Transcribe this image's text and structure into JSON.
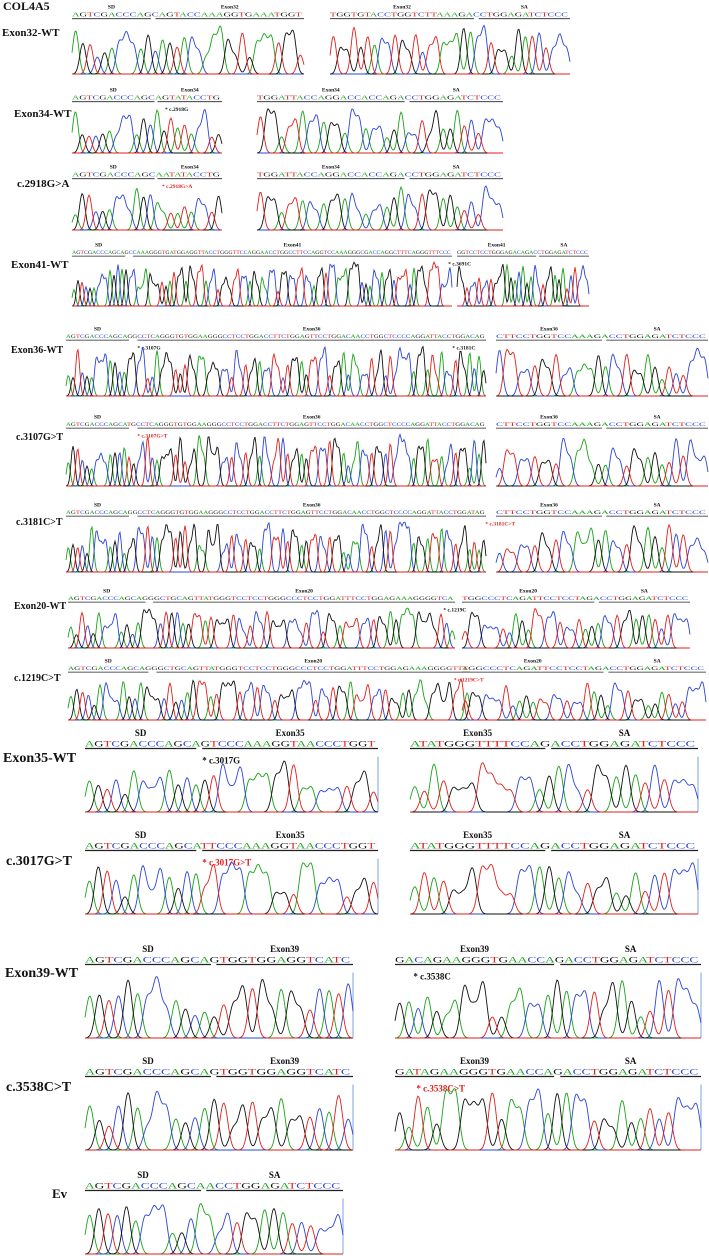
{
  "title": "COL4A5",
  "colors": {
    "A": "#19a319",
    "C": "#2b45d8",
    "G": "#111111",
    "T": "#e0201c",
    "mark_wt": "#111111",
    "mark_mut": "#e0201c",
    "frame": "#5b8fd9"
  },
  "rows": [
    {
      "label": "Exon32-WT",
      "panels": [
        {
          "seq": "AGTCGACCCAGCAGTACCAAAGGTGAAATGGT",
          "tags": [
            {
              "text": "SD",
              "from": 0,
              "to": 0.34
            },
            {
              "text": "Exon32",
              "from": 0.36,
              "to": 1
            }
          ]
        },
        {
          "seq": "TGGTGTACCTGGTCTTAAAGACCTGGAGATCTCCC",
          "tags": [
            {
              "text": "Exon32",
              "from": 0,
              "to": 0.6
            },
            {
              "text": "SA",
              "from": 0.62,
              "to": 1
            }
          ]
        }
      ]
    },
    {
      "label": "Exon34-WT",
      "panels": [
        {
          "seq": "AGTCGACCCAGCAGTATACCTG",
          "tags": [
            {
              "text": "SD",
              "from": 0,
              "to": 0.55
            },
            {
              "text": "Exon34",
              "from": 0.57,
              "to": 1
            }
          ],
          "mark": {
            "text": "* c.2918G",
            "type": "wt",
            "at": 0.62
          }
        },
        {
          "seq": "TGGATTACCAGGACCACCAGACCTGGAGATCTCCC",
          "tags": [
            {
              "text": "Exon34",
              "from": 0,
              "to": 0.6
            },
            {
              "text": "SA",
              "from": 0.62,
              "to": 1
            }
          ]
        }
      ]
    },
    {
      "label": "c.2918G>A",
      "panels": [
        {
          "seq": "AGTCGACCCAGCAATATACCTG",
          "tags": [
            {
              "text": "SD",
              "from": 0,
              "to": 0.55
            },
            {
              "text": "Exon34",
              "from": 0.57,
              "to": 1
            }
          ],
          "mark": {
            "text": "* c.2918G>A",
            "type": "mut",
            "at": 0.6
          }
        },
        {
          "seq": "TGGATTACCAGGACCACCAGACCTGGAGATCTCCC",
          "tags": [
            {
              "text": "Exon34",
              "from": 0,
              "to": 0.6
            },
            {
              "text": "SA",
              "from": 0.62,
              "to": 1
            }
          ]
        }
      ]
    },
    {
      "label": "Exon41-WT",
      "panels": [
        {
          "seq": "AGTCGACCCAGCAGCCAAAGGGTGATGGAGGTTACCTGGGTTCCAGGAACCTGGCCTTCCAGGTCCAAAGGGCGACCAGGCTTTCAGGGTTTCCC",
          "tags": [
            {
              "text": "SD",
              "from": 0,
              "to": 0.14
            },
            {
              "text": "Exon41",
              "from": 0.16,
              "to": 1
            }
          ],
          "mark": {
            "text": "* c.3691C",
            "type": "wt",
            "at": 0.99
          }
        },
        {
          "seq": "GGTCCTCCTGGGAGACAGACCTGGAGATCTCCC",
          "tags": [
            {
              "text": "Exon41",
              "from": 0,
              "to": 0.6
            },
            {
              "text": "SA",
              "from": 0.62,
              "to": 1
            }
          ]
        }
      ]
    },
    {
      "label": "Exon36-WT",
      "panels": [
        {
          "seq": "AGTCGACCCAGCAGGCCTCAGGGTGTGGAAGGGCCTCCTGGACCTTCTGGAGTTCCTGGACAACCTGGCTCCCCAGGATTACCTGGACAG",
          "tags": [
            {
              "text": "SD",
              "from": 0,
              "to": 0.15
            },
            {
              "text": "Exon36",
              "from": 0.17,
              "to": 1
            }
          ],
          "mark": {
            "text": "* c.3107G",
            "type": "wt",
            "at": 0.17
          },
          "mark2": {
            "text": "* c.3181C",
            "type": "wt",
            "at": 0.92
          }
        },
        {
          "seq": "CTTCCTGGTCCAAAGACCTGGAGATCTCCC",
          "tags": [
            {
              "text": "Exon36",
              "from": 0,
              "to": 0.5
            },
            {
              "text": "SA",
              "from": 0.52,
              "to": 1
            }
          ]
        }
      ]
    },
    {
      "label": "c.3107G>T",
      "panels": [
        {
          "seq": "AGTCGACCCAGCATGCCTCAGGGTGTGGAAGGGCCTCCTGGACCTTCTGGAGTTCCTGGACAACCTGGCTCCCCAGGATTACCTGGACAG",
          "tags": [
            {
              "text": "SD",
              "from": 0,
              "to": 0.15
            },
            {
              "text": "Exon36",
              "from": 0.17,
              "to": 1
            }
          ],
          "mark": {
            "text": "* c.3107G>T",
            "type": "mut",
            "at": 0.17
          }
        },
        {
          "seq": "CTTCCTGGTCCAAAGACCTGGAGATCTCCC",
          "tags": [
            {
              "text": "Exon36",
              "from": 0,
              "to": 0.5
            },
            {
              "text": "SA",
              "from": 0.52,
              "to": 1
            }
          ]
        }
      ]
    },
    {
      "label": "c.3181C>T",
      "panels": [
        {
          "seq": "AGTCGACCCAGCAGGCCTCAGGGTGTGGAAGGGCCTCCTGGACCTTCTGGAGTTCCTGGACAACCTGGCTCCCCAGGATTACCTGGATAG",
          "tags": [
            {
              "text": "SD",
              "from": 0,
              "to": 0.15
            },
            {
              "text": "Exon36",
              "from": 0.17,
              "to": 1
            }
          ]
        },
        {
          "seq": "CTTCCTGGTCCAAAGACCTGGAGATCTCCC",
          "tags": [
            {
              "text": "Exon36",
              "from": 0,
              "to": 0.5
            },
            {
              "text": "SA",
              "from": 0.52,
              "to": 1
            }
          ],
          "mark": {
            "text": "* c.3181C>T",
            "type": "mut",
            "at": -0.05
          }
        }
      ]
    },
    {
      "label": "Exon20-WT",
      "panels": [
        {
          "seq": "AGTCGACCCAGCAGGGCTGCAGTTATGGGTCCTCCTGGGCCCTCCTGGATTTCCTGGAGAAAGGGGTCA",
          "tags": [
            {
              "text": "SD",
              "from": 0,
              "to": 0.2
            },
            {
              "text": "Exon20",
              "from": 0.22,
              "to": 1
            }
          ],
          "mark": {
            "text": "* c.1219C",
            "type": "wt",
            "at": 0.97
          }
        },
        {
          "seq": "TGGCCCTCAGATTCCTCCTAGACCTGGAGATCTCCC",
          "tags": [
            {
              "text": "Exon20",
              "from": 0,
              "to": 0.58
            },
            {
              "text": "SA",
              "from": 0.6,
              "to": 1
            }
          ]
        }
      ]
    },
    {
      "label": "c.1219C>T",
      "panels": [
        {
          "seq": "AGTCGACCCAGCAGGGCTGCAGTTATGGGTCCTCCTGGGCCCTCCTGGATTTCCTGGAGAAAGGGGTTA",
          "tags": [
            {
              "text": "SD",
              "from": 0,
              "to": 0.2
            },
            {
              "text": "Exon20",
              "from": 0.22,
              "to": 1
            }
          ],
          "mark": {
            "text": "* c.1219C>T",
            "type": "mut",
            "at": 0.96
          }
        },
        {
          "seq": "TGGCCCTCAGATTCCTCCTAGACCTGGAGATCTCCC",
          "tags": [
            {
              "text": "Exon20",
              "from": 0,
              "to": 0.58
            },
            {
              "text": "SA",
              "from": 0.6,
              "to": 1
            }
          ]
        }
      ]
    },
    {
      "label": "Exon35-WT",
      "panels": [
        {
          "seq": "AGTCGACCCAGCAGTCCCAAAGGTAACCCTGGT",
          "tags": [
            {
              "text": "SD",
              "from": 0,
              "to": 0.38
            },
            {
              "text": "Exon35",
              "from": 0.4,
              "to": 1
            }
          ],
          "mark": {
            "text": "* c.3017G",
            "type": "wt",
            "at": 0.4
          }
        },
        {
          "seq": "ATATGGGTTTTCCAGACCTGGAGATCTCCC",
          "tags": [
            {
              "text": "Exon35",
              "from": 0,
              "to": 0.47
            },
            {
              "text": "SA",
              "from": 0.49,
              "to": 1
            }
          ]
        }
      ]
    },
    {
      "label": "c.3017G>T",
      "panels": [
        {
          "seq": "AGTCGACCCAGCATTCCCAAAGGTAACCCTGGT",
          "tags": [
            {
              "text": "SD",
              "from": 0,
              "to": 0.38
            },
            {
              "text": "Exon35",
              "from": 0.4,
              "to": 1
            }
          ],
          "mark": {
            "text": "* c.3017G>T",
            "type": "mut",
            "at": 0.4
          }
        },
        {
          "seq": "ATATGGGTTTTCCAGACCTGGAGATCTCCC",
          "tags": [
            {
              "text": "Exon35",
              "from": 0,
              "to": 0.47
            },
            {
              "text": "SA",
              "from": 0.49,
              "to": 1
            }
          ]
        }
      ]
    },
    {
      "label": "Exon39-WT",
      "panels": [
        {
          "seq": "AGTCGACCCAGCAGTGGTGGAGGTCATC",
          "tags": [
            {
              "text": "SD",
              "from": 0,
              "to": 0.47
            },
            {
              "text": "Exon39",
              "from": 0.49,
              "to": 1
            }
          ]
        },
        {
          "seq": "GACAGAAGGGTGAACCAGACCTGGAGATCTCCC",
          "tags": [
            {
              "text": "Exon39",
              "from": 0,
              "to": 0.52
            },
            {
              "text": "SA",
              "from": 0.54,
              "to": 1
            }
          ],
          "mark": {
            "text": "* c.3538C",
            "type": "wt",
            "at": 0.06
          }
        }
      ]
    },
    {
      "label": "c.3538C>T",
      "panels": [
        {
          "seq": "AGTCGACCCAGCAGTGGTGGAGGTCATC",
          "tags": [
            {
              "text": "SD",
              "from": 0,
              "to": 0.47
            },
            {
              "text": "Exon39",
              "from": 0.49,
              "to": 1
            }
          ]
        },
        {
          "seq": "GATAGAAGGGTGAACCAGACCTGGAGATCTCCC",
          "tags": [
            {
              "text": "Exon39",
              "from": 0,
              "to": 0.52
            },
            {
              "text": "SA",
              "from": 0.54,
              "to": 1
            }
          ],
          "mark": {
            "text": "* c.3538C>T",
            "type": "mut",
            "at": 0.07
          }
        }
      ]
    },
    {
      "label": "Ev",
      "panels": [
        {
          "seq": "AGTCGACCCAGCAACCTGGAGATCTCCC",
          "tags": [
            {
              "text": "SD",
              "from": 0,
              "to": 0.45
            },
            {
              "text": "SA",
              "from": 0.47,
              "to": 1
            }
          ]
        }
      ]
    }
  ]
}
